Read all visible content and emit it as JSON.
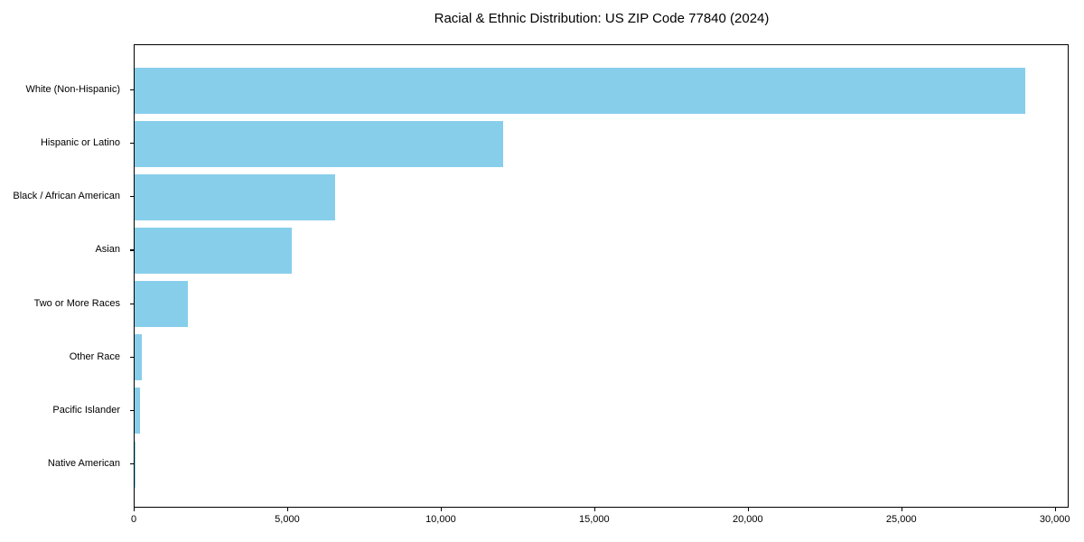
{
  "chart_data": {
    "type": "bar",
    "orientation": "horizontal",
    "title": "Racial & Ethnic Distribution: US ZIP Code 77840 (2024)",
    "categories": [
      "White (Non-Hispanic)",
      "Hispanic or Latino",
      "Black / African American",
      "Asian",
      "Two or More Races",
      "Other Race",
      "Pacific Islander",
      "Native American"
    ],
    "values": [
      29000,
      12000,
      6540,
      5130,
      1740,
      230,
      170,
      35
    ],
    "xlabel": "",
    "ylabel": "",
    "xlim": [
      0,
      30450
    ],
    "xticks": [
      {
        "value": 0,
        "label": "0"
      },
      {
        "value": 5000,
        "label": "5,000"
      },
      {
        "value": 10000,
        "label": "10,000"
      },
      {
        "value": 15000,
        "label": "15,000"
      },
      {
        "value": 20000,
        "label": "20,000"
      },
      {
        "value": 25000,
        "label": "25,000"
      },
      {
        "value": 30000,
        "label": "30,000"
      }
    ],
    "grid": false,
    "legend": null,
    "bar_color": "#87CEEB",
    "axis_color": "#000000",
    "text_color": "#000000",
    "background_color": "#ffffff"
  }
}
